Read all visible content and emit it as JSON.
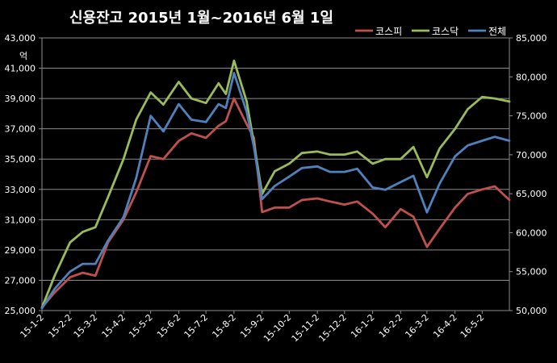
{
  "chart_data": {
    "type": "line",
    "title": "신용잔고 2015년 1월~2016년 6월 1일",
    "ylabel_left": "억",
    "ylim_left": [
      25000,
      43000
    ],
    "ylim_right": [
      50000,
      85000
    ],
    "y_left_ticks": [
      "25,000",
      "27,000",
      "29,000",
      "31,000",
      "33,000",
      "35,000",
      "37,000",
      "39,000",
      "41,000",
      "43,000"
    ],
    "y_right_ticks": [
      "50,000",
      "55,000",
      "60,000",
      "65,000",
      "70,000",
      "75,000",
      "80,000",
      "85,000"
    ],
    "x_tick_labels": [
      "15-1-2",
      "15-2-2",
      "15-3-2",
      "15-4-2",
      "15-5-2",
      "15-6-2",
      "15-7-2",
      "15-8-2",
      "15-9-2",
      "15-10-2",
      "15-11-2",
      "15-12-2",
      "16-1-2",
      "16-2-2",
      "16-3-2",
      "16-4-2",
      "16-5-2"
    ],
    "x": [
      "15-1-2",
      "15-1-16",
      "15-2-2",
      "15-2-16",
      "15-3-2",
      "15-3-16",
      "15-4-2",
      "15-4-16",
      "15-5-2",
      "15-5-16",
      "15-6-2",
      "15-6-16",
      "15-7-2",
      "15-7-16",
      "15-7-24",
      "15-8-2",
      "15-8-16",
      "15-8-24",
      "15-9-2",
      "15-9-16",
      "15-10-2",
      "15-10-16",
      "15-11-2",
      "15-11-16",
      "15-12-2",
      "15-12-16",
      "16-1-2",
      "16-1-16",
      "16-2-2",
      "16-2-16",
      "16-3-2",
      "16-3-16",
      "16-4-2",
      "16-4-16",
      "16-5-2",
      "16-5-16",
      "16-6-1"
    ],
    "series": [
      {
        "name": "코스피",
        "axis": "left",
        "color": "#c0504d",
        "values": [
          25200,
          26200,
          27200,
          27500,
          27300,
          29500,
          31000,
          32800,
          35200,
          35000,
          36200,
          36700,
          36400,
          37200,
          37500,
          39000,
          37300,
          36400,
          31500,
          31800,
          31800,
          32300,
          32400,
          32200,
          32000,
          32200,
          31400,
          30500,
          31700,
          31200,
          29200,
          30400,
          31800,
          32700,
          33000,
          33200,
          32300
        ]
      },
      {
        "name": "코스닥",
        "axis": "left",
        "color": "#9bbb59",
        "values": [
          25200,
          27300,
          29500,
          30200,
          30500,
          32500,
          35000,
          37600,
          39400,
          38600,
          40100,
          39000,
          38700,
          40000,
          39300,
          41500,
          38800,
          36000,
          32700,
          34200,
          34700,
          35400,
          35500,
          35300,
          35300,
          35500,
          34700,
          35000,
          35000,
          35800,
          33800,
          35700,
          37000,
          38300,
          39100,
          39000,
          38800
        ]
      },
      {
        "name": "전체",
        "axis": "right",
        "color": "#4f81bd",
        "values": [
          50300,
          52800,
          55000,
          56000,
          56000,
          59000,
          62000,
          67000,
          75000,
          73000,
          76500,
          74500,
          74200,
          76500,
          76000,
          80500,
          75500,
          71000,
          64300,
          66000,
          67200,
          68300,
          68500,
          67800,
          67800,
          68200,
          65800,
          65500,
          66500,
          67300,
          62600,
          66300,
          69800,
          71200,
          71800,
          72300,
          71800
        ]
      }
    ],
    "legend_position": "top-right",
    "grid": "horizontal"
  }
}
